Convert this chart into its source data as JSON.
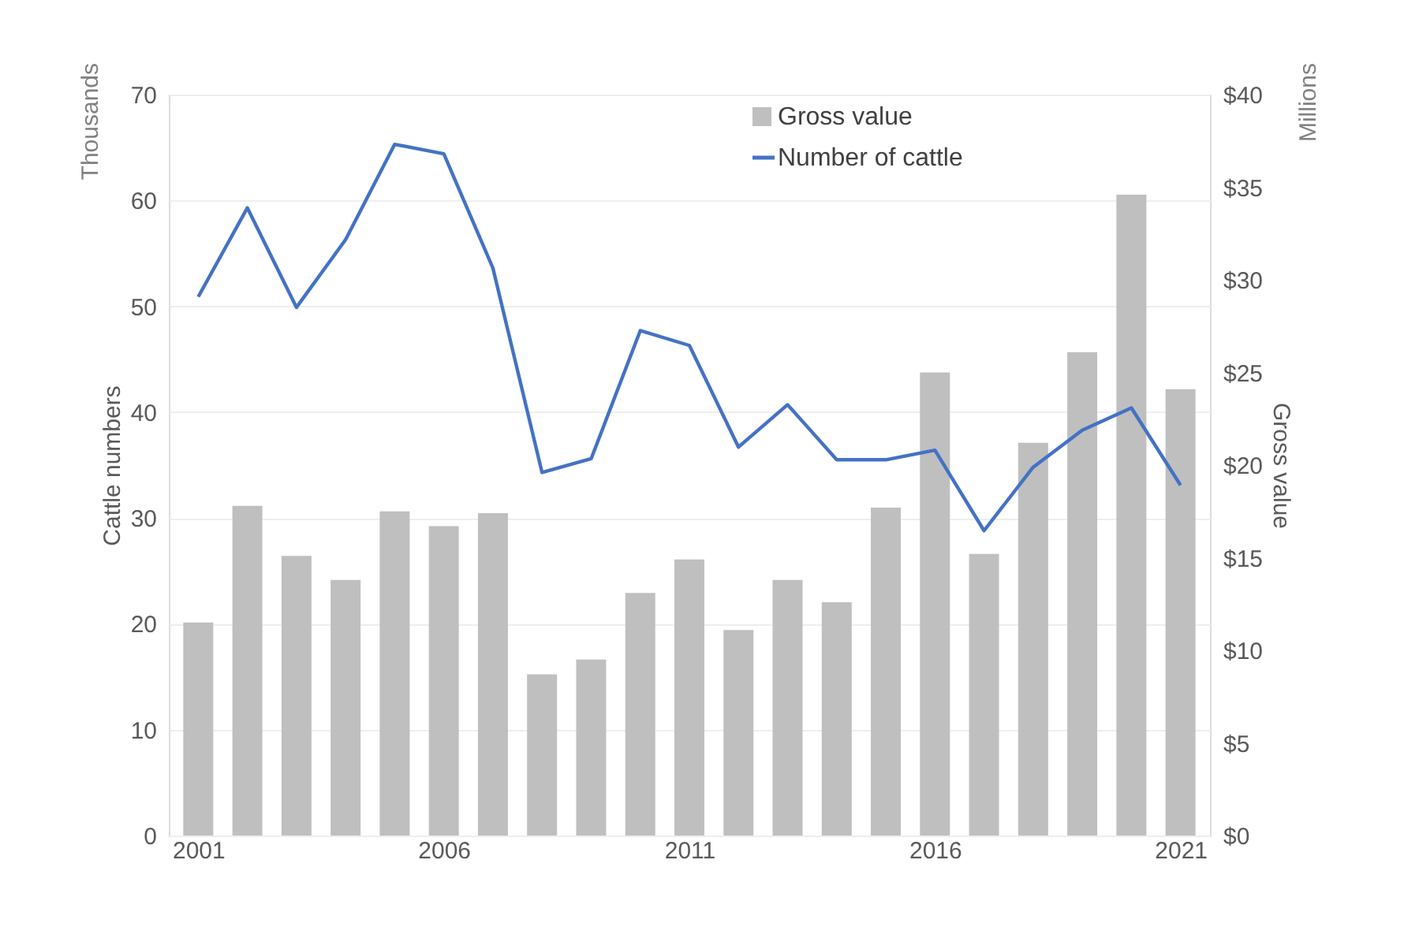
{
  "chart_data": {
    "type": "bar",
    "xlabel": null,
    "ylabel": "Cattle numbers",
    "y2label": "Gross value",
    "x": [
      2001,
      2002,
      2003,
      2004,
      2005,
      2006,
      2007,
      2008,
      2009,
      2010,
      2011,
      2012,
      2013,
      2014,
      2015,
      2016,
      2017,
      2018,
      2019,
      2020,
      2021
    ],
    "xlim": [
      2000.4,
      2021.6
    ],
    "xticks": [
      2001,
      2006,
      2011,
      2016,
      2021
    ],
    "ylim": [
      0,
      70
    ],
    "yticks": [
      0,
      10,
      20,
      30,
      40,
      50,
      60,
      70
    ],
    "y2lim": [
      0,
      40
    ],
    "y2ticks": [
      {
        "value": 0,
        "label": "$0"
      },
      {
        "value": 5,
        "label": "$5"
      },
      {
        "value": 10,
        "label": "$10"
      },
      {
        "value": 15,
        "label": "$15"
      },
      {
        "value": 20,
        "label": "$20"
      },
      {
        "value": 25,
        "label": "$25"
      },
      {
        "value": 30,
        "label": "$30"
      },
      {
        "value": 35,
        "label": "$35"
      },
      {
        "value": 40,
        "label": "$40"
      }
    ],
    "series": [
      {
        "name": "Gross value",
        "axis": "y2",
        "color": "#bfbfbf",
        "values": [
          11.5,
          17.8,
          15.1,
          13.8,
          17.5,
          16.7,
          17.4,
          8.7,
          9.5,
          13.1,
          14.9,
          11.1,
          13.8,
          12.6,
          17.7,
          25.0,
          15.2,
          21.2,
          26.1,
          34.6,
          24.1
        ]
      },
      {
        "name": "Number of cattle",
        "type": "line",
        "color": "#4472c4",
        "values": [
          50.9,
          59.3,
          49.9,
          56.3,
          65.3,
          64.4,
          53.6,
          34.3,
          35.6,
          47.7,
          46.3,
          36.7,
          40.7,
          35.5,
          35.5,
          36.4,
          28.8,
          34.8,
          38.3,
          40.4,
          33.1
        ]
      }
    ],
    "annotations": [
      "Thousands",
      "Millions"
    ],
    "grid": "y",
    "legend": "top right",
    "marker": "none",
    "line_style": "solid"
  }
}
